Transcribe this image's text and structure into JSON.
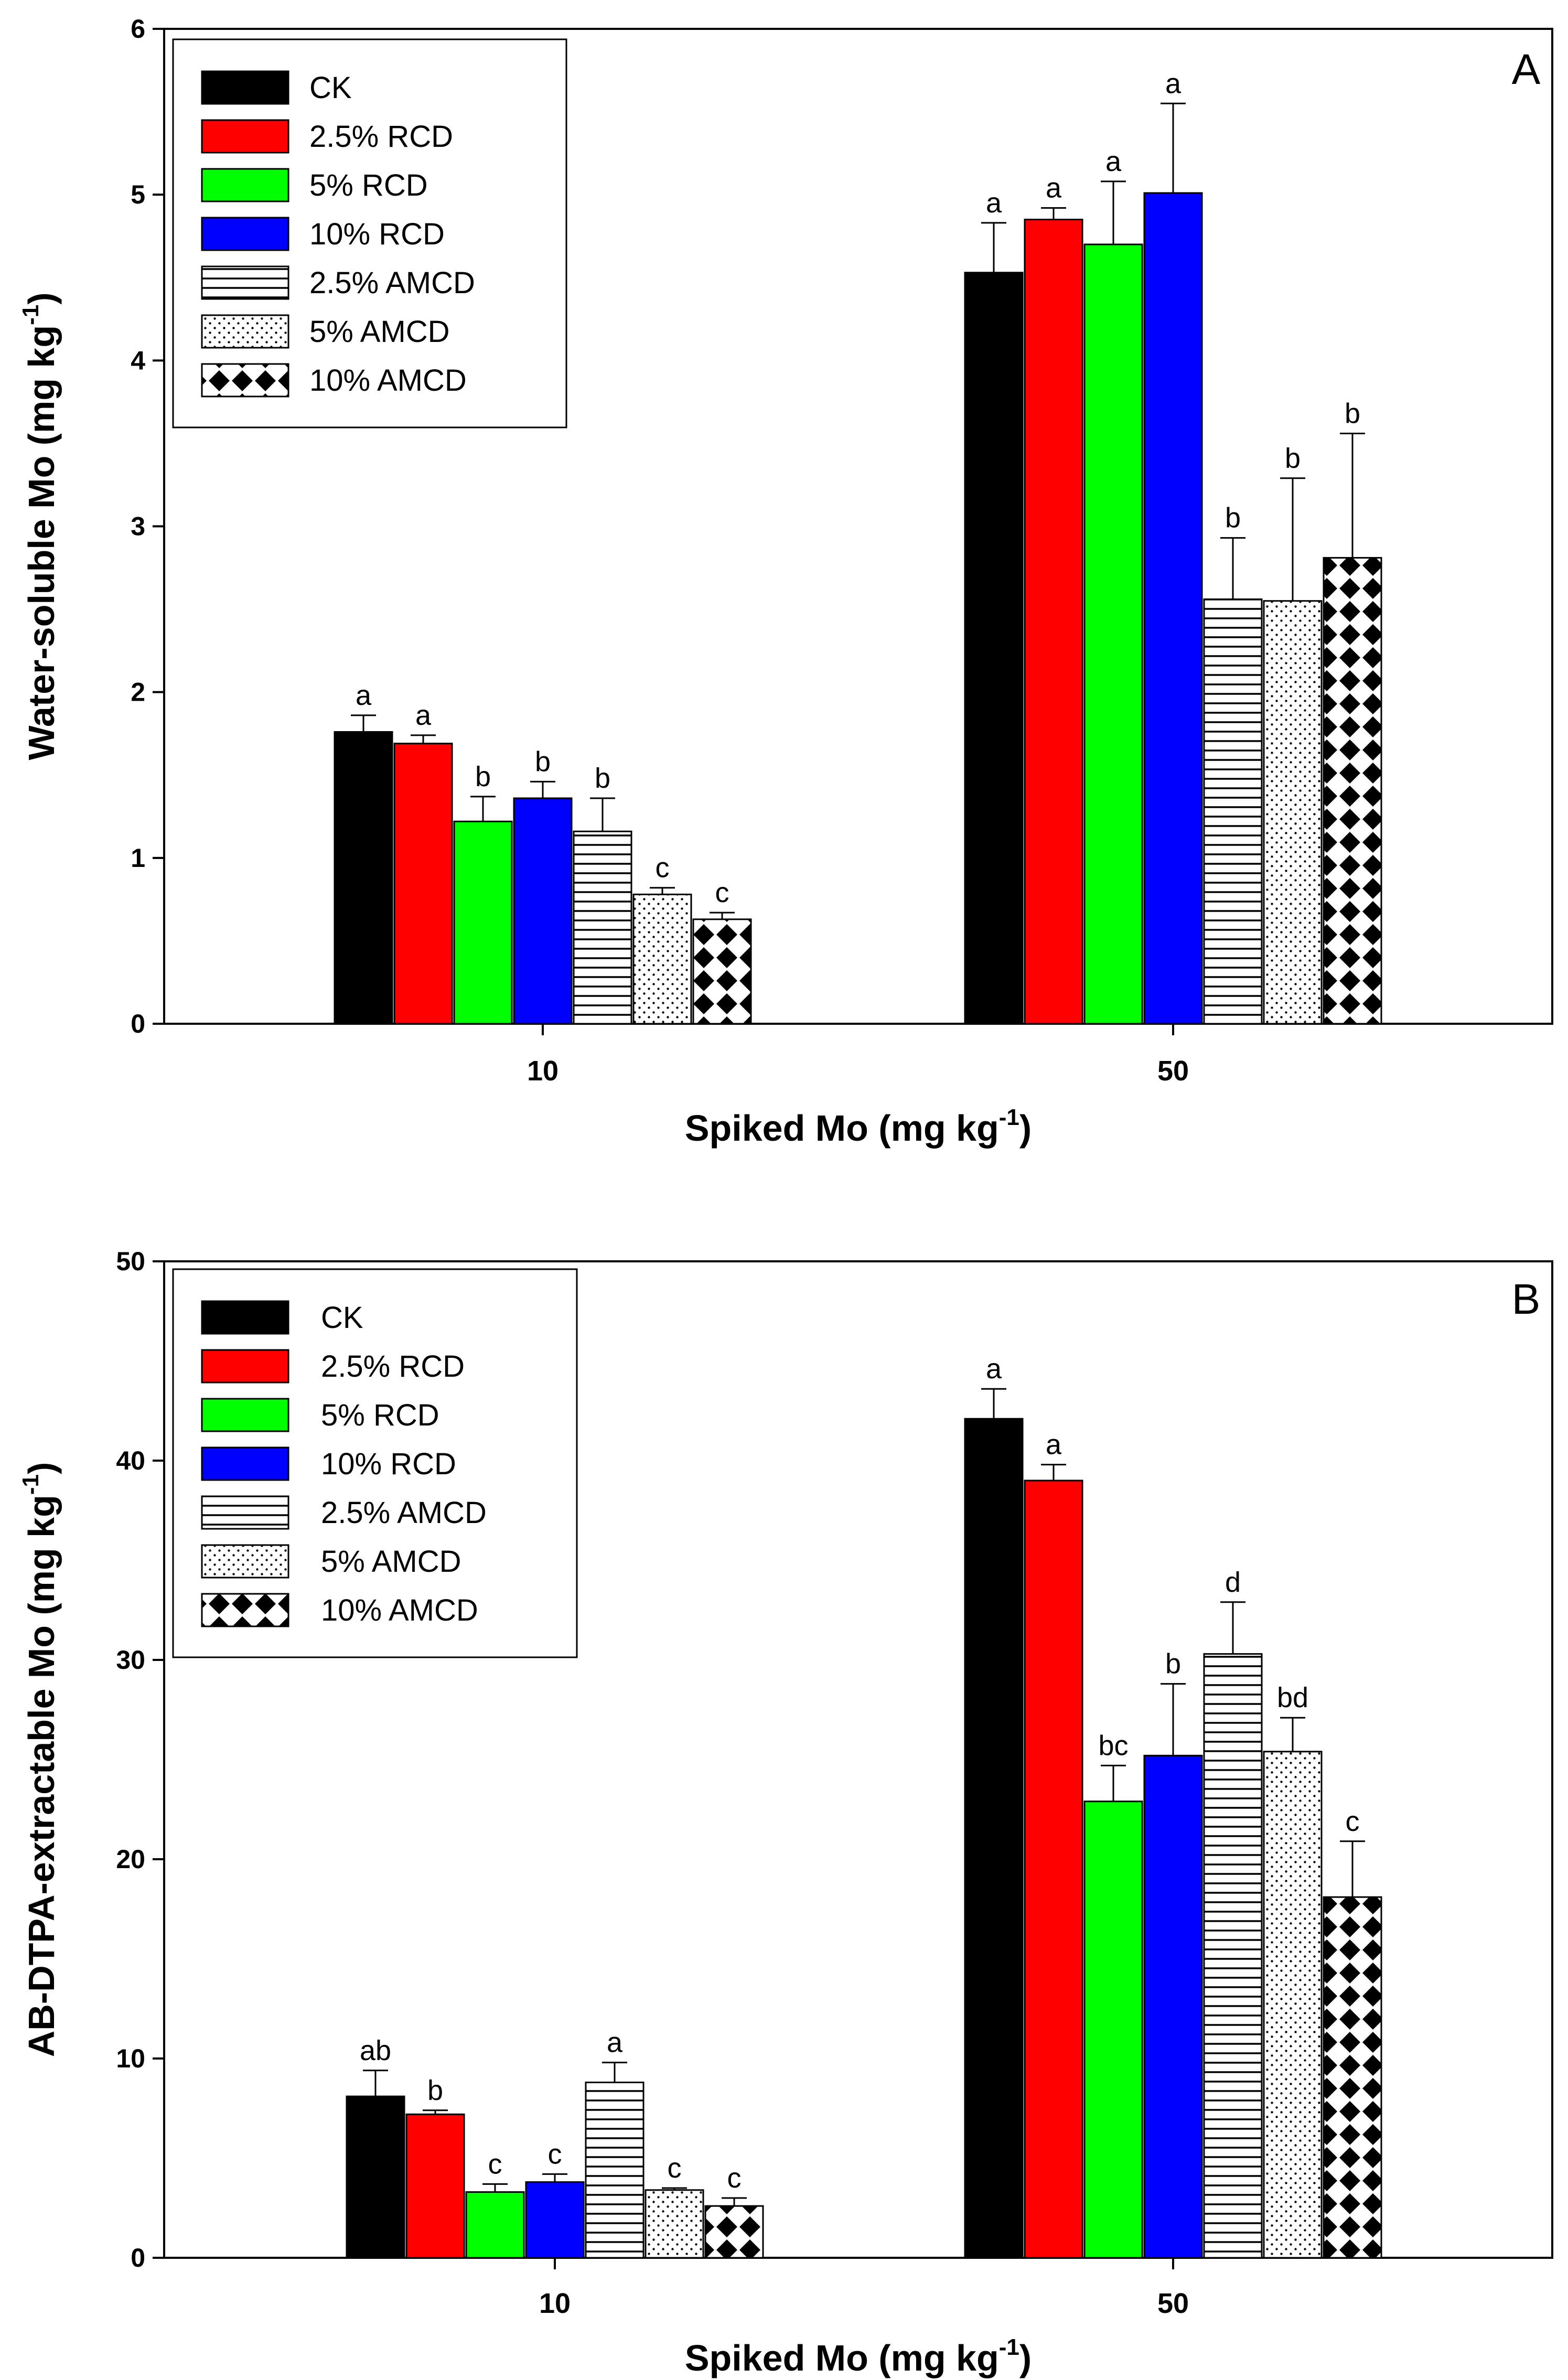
{
  "series_styles": [
    {
      "key": "ck",
      "fill": "#000000",
      "pattern": "solid"
    },
    {
      "key": "rcd25",
      "fill": "#ff0000",
      "pattern": "solid"
    },
    {
      "key": "rcd5",
      "fill": "#00ff00",
      "pattern": "solid"
    },
    {
      "key": "rcd10",
      "fill": "#0000ff",
      "pattern": "solid"
    },
    {
      "key": "amcd25",
      "fill": "#ffffff",
      "pattern": "hlines"
    },
    {
      "key": "amcd5",
      "fill": "#ffffff",
      "pattern": "dots"
    },
    {
      "key": "amcd10",
      "fill": "#ffffff",
      "pattern": "diamonds"
    }
  ],
  "chart_data": [
    {
      "type": "bar",
      "panel": "A",
      "categories": [
        "10",
        "50"
      ],
      "xlabel": "Spiked Mo (mg kg",
      "xlabel_sup": "-1",
      "xlabel_close": ")",
      "ylabel": "Water-soluble Mo (mg kg",
      "ylabel_sup": "-1",
      "ylabel_close": ")",
      "ylim": [
        0,
        6
      ],
      "yticks": [
        0,
        1,
        2,
        3,
        4,
        5,
        6
      ],
      "ytick_labels": [
        "0",
        "1",
        "2",
        "3",
        "4",
        "5",
        "6"
      ],
      "legend_position": "top-left",
      "series": [
        {
          "name": "CK",
          "values": [
            1.76,
            4.53
          ],
          "errors": [
            0.1,
            0.3
          ],
          "labels": [
            "a",
            "a"
          ]
        },
        {
          "name": "2.5% RCD",
          "values": [
            1.69,
            4.85
          ],
          "errors": [
            0.05,
            0.07
          ],
          "labels": [
            "a",
            "a"
          ]
        },
        {
          "name": "5% RCD",
          "values": [
            1.22,
            4.7
          ],
          "errors": [
            0.15,
            0.38
          ],
          "labels": [
            "b",
            "a"
          ]
        },
        {
          "name": "10% RCD",
          "values": [
            1.36,
            5.01
          ],
          "errors": [
            0.1,
            0.54
          ],
          "labels": [
            "b",
            "a"
          ]
        },
        {
          "name": "2.5% AMCD",
          "values": [
            1.16,
            2.56
          ],
          "errors": [
            0.2,
            0.37
          ],
          "labels": [
            "b",
            "b"
          ]
        },
        {
          "name": "5% AMCD",
          "values": [
            0.78,
            2.55
          ],
          "errors": [
            0.04,
            0.74
          ],
          "labels": [
            "c",
            "b"
          ]
        },
        {
          "name": "10% AMCD",
          "values": [
            0.63,
            2.81
          ],
          "errors": [
            0.04,
            0.75
          ],
          "labels": [
            "c",
            "b"
          ]
        }
      ]
    },
    {
      "type": "bar",
      "panel": "B",
      "categories": [
        "10",
        "50"
      ],
      "xlabel": "Spiked Mo (mg kg",
      "xlabel_sup": "-1",
      "xlabel_close": ")",
      "ylabel": "AB-DTPA-extractable Mo (mg kg",
      "ylabel_sup": "-1",
      "ylabel_close": ")",
      "ylim": [
        0,
        50
      ],
      "yticks": [
        0,
        10,
        20,
        30,
        40,
        50
      ],
      "ytick_labels": [
        "0",
        "10",
        "20",
        "30",
        "40",
        "50"
      ],
      "legend_position": "top-left",
      "series": [
        {
          "name": "CK",
          "values": [
            8.1,
            42.1
          ],
          "errors": [
            1.3,
            1.5
          ],
          "labels": [
            "ab",
            "a"
          ]
        },
        {
          "name": "2.5% RCD",
          "values": [
            7.2,
            39.0
          ],
          "errors": [
            0.2,
            0.8
          ],
          "labels": [
            "b",
            "a"
          ]
        },
        {
          "name": "5% RCD",
          "values": [
            3.3,
            22.9
          ],
          "errors": [
            0.4,
            1.8
          ],
          "labels": [
            "c",
            "bc"
          ]
        },
        {
          "name": "10% RCD",
          "values": [
            3.8,
            25.2
          ],
          "errors": [
            0.4,
            3.6
          ],
          "labels": [
            "c",
            "b"
          ]
        },
        {
          "name": "2.5% AMCD",
          "values": [
            8.8,
            30.3
          ],
          "errors": [
            1.0,
            2.6
          ],
          "labels": [
            "a",
            "d"
          ]
        },
        {
          "name": "5% AMCD",
          "values": [
            3.4,
            25.4
          ],
          "errors": [
            0.1,
            1.7
          ],
          "labels": [
            "c",
            "bd"
          ]
        },
        {
          "name": "10% AMCD",
          "values": [
            2.6,
            18.1
          ],
          "errors": [
            0.4,
            2.8
          ],
          "labels": [
            "c",
            "c"
          ]
        }
      ]
    }
  ]
}
